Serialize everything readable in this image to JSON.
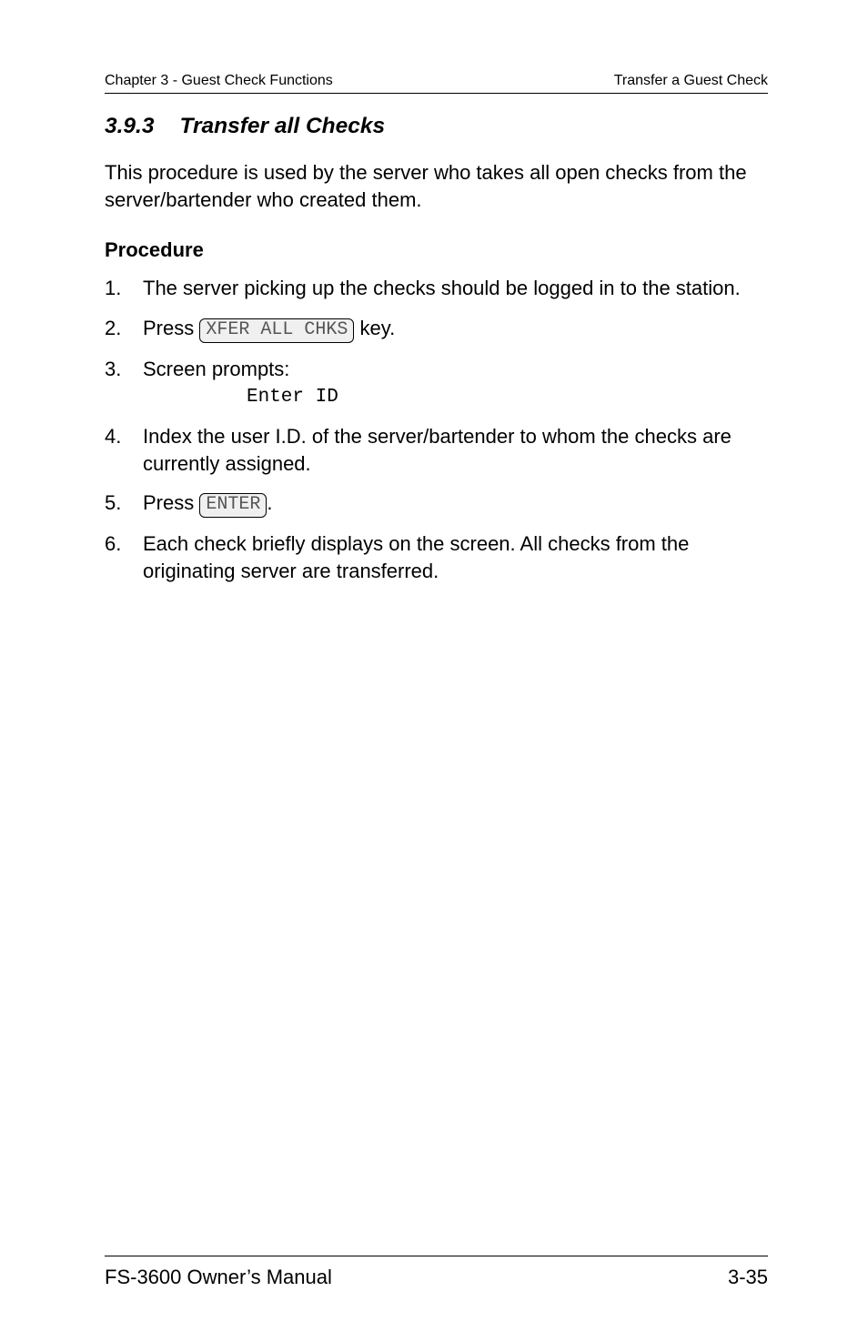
{
  "header": {
    "left": "Chapter 3 - Guest Check Functions",
    "right": "Transfer a Guest Check"
  },
  "section": {
    "number": "3.9.3",
    "title": "Transfer all Checks"
  },
  "intro": "This procedure is used by the server who takes all open checks from the server/bartender who created them.",
  "procedure_label": "Procedure",
  "steps": {
    "s1": "The server picking up the checks should be logged in to the station.",
    "s2_pre": "Press ",
    "s2_key": "XFER ALL CHKS",
    "s2_post": " key.",
    "s3": "Screen prompts:",
    "s3_mono": "Enter ID",
    "s4": "Index the user I.D. of the server/bartender to whom the checks are currently assigned.",
    "s5_pre": "Press ",
    "s5_key": "ENTER",
    "s5_post": ".",
    "s6": "Each check briefly displays on the screen.  All checks from the originating server are transferred."
  },
  "footer": {
    "left": "FS-3600 Owner’s Manual",
    "right": "3-35"
  },
  "colors": {
    "text": "#000000",
    "bg": "#ffffff",
    "keycap_bg": "#f0f0f0",
    "keycap_text": "#555555",
    "rule": "#000000"
  },
  "fonts": {
    "body_family": "Arial",
    "mono_family": "Courier New",
    "header_size_pt": 12,
    "heading_size_pt": 18,
    "body_size_pt": 16
  }
}
